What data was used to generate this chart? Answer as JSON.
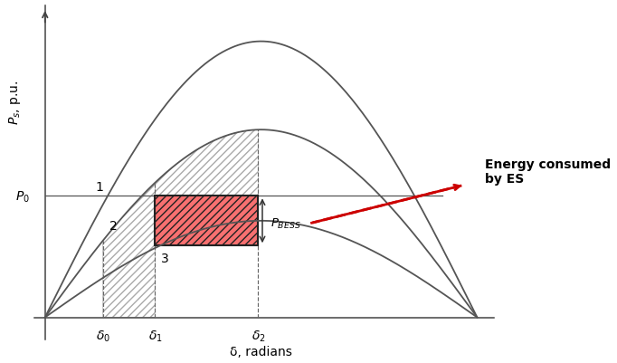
{
  "xlabel": "δ, radians",
  "ylabel": "$P_s$, p.u.",
  "bg_color": "#ffffff",
  "curve1_amp": 1.0,
  "curve2_amp": 0.68,
  "curve3_amp": 0.35,
  "delta0": 0.42,
  "delta1": 0.8,
  "delta2": 1.55,
  "P0": 0.44,
  "P_BESS": 0.18,
  "label1": "1",
  "label2": "2",
  "label3": "3",
  "annotation_text": "Energy consumed\nby ES",
  "P_BESS_label": "$P_{BESS}$",
  "delta0_label": "$\\delta_0$",
  "delta1_label": "$\\delta_1$",
  "delta2_label": "$\\delta_2$",
  "P0_label": "$P_0$",
  "curve_color": "#555555",
  "arrow_color": "#cc0000"
}
